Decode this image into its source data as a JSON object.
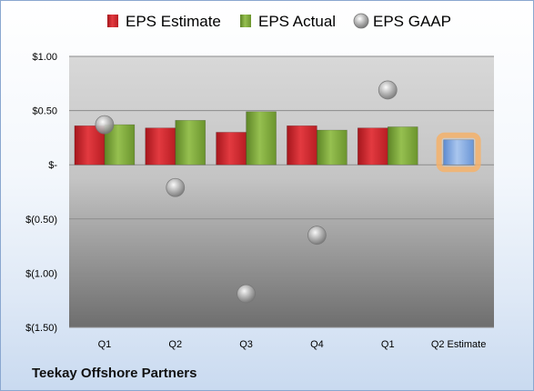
{
  "chart_data": {
    "type": "bar",
    "categories": [
      "Q1",
      "Q2",
      "Q3",
      "Q4",
      "Q1",
      "Q2 Estimate"
    ],
    "series": [
      {
        "name": "EPS Estimate",
        "kind": "bar",
        "color": "#d9232a",
        "values": [
          0.36,
          0.34,
          0.3,
          0.36,
          0.34,
          null
        ]
      },
      {
        "name": "EPS Actual",
        "kind": "bar",
        "color": "#7fab3a",
        "values": [
          0.37,
          0.41,
          0.49,
          0.32,
          0.35,
          null
        ]
      },
      {
        "name": "EPS GAAP",
        "kind": "marker",
        "color": "#b0b0b0",
        "values": [
          0.37,
          -0.21,
          -1.19,
          -0.65,
          0.69,
          null
        ]
      },
      {
        "name": "Q2 Estimate",
        "kind": "bar",
        "color": "#7fa8e0",
        "highlight": "#f5b16a",
        "values": [
          null,
          null,
          null,
          null,
          null,
          0.23
        ]
      }
    ],
    "ylim": [
      -1.5,
      1.0
    ],
    "yticks": [
      1.0,
      0.5,
      0.0,
      -0.5,
      -1.0,
      -1.5
    ],
    "ytick_labels": [
      "$1.00",
      "$0.50",
      "$-",
      "$(0.50)",
      "$(1.00)",
      "$(1.50)"
    ],
    "grid": true,
    "legend_position": "top"
  },
  "company_name": "Teekay Offshore Partners"
}
